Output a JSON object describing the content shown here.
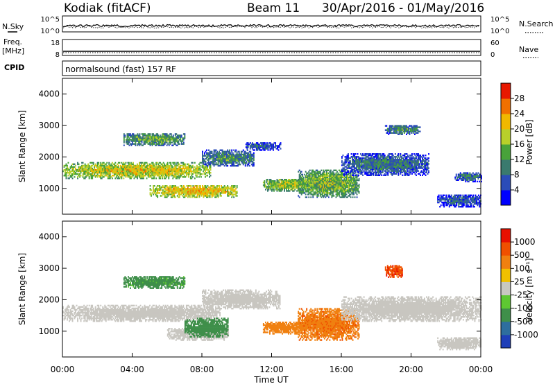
{
  "header": {
    "station": "Kodiak (fitACF)",
    "beam": "Beam 11",
    "date_range": "30/Apr/2016 - 01/May/2016"
  },
  "noise_panel": {
    "left_label": "N.Sky",
    "right_label": "N.Search",
    "left_ticks": [
      "10^5",
      "10^0"
    ],
    "right_ticks": [
      "10^5",
      "10^0"
    ]
  },
  "freq_panel": {
    "left_label_1": "Freq.",
    "left_label_2": "[MHz]",
    "right_label": "Nave",
    "left_ticks": [
      "18",
      "8"
    ],
    "right_ticks": [
      "60",
      "0"
    ]
  },
  "cpid_panel": {
    "label": "CPID",
    "text": "normalsound (fast) 157 RF"
  },
  "x_axis": {
    "label": "Time UT",
    "ticks": [
      "00:00",
      "04:00",
      "08:00",
      "12:00",
      "16:00",
      "20:00",
      "00:00"
    ]
  },
  "colors": {
    "power_scale": [
      "#0000ff",
      "#2b4cb8",
      "#3a7a6e",
      "#48a23a",
      "#b8d02a",
      "#f0b800",
      "#f07000",
      "#e81800"
    ],
    "velocity_scale": [
      "#1f3fb8",
      "#2e6e9e",
      "#3f8f4a",
      "#5ec832",
      "#c8c8c0",
      "#f0c000",
      "#f08010",
      "#f05000",
      "#e81000"
    ],
    "ground_scatter": "#c8c6c0"
  },
  "chart_data": [
    {
      "type": "heatmap",
      "title": "",
      "xlabel": "Time UT",
      "ylabel": "Slant Range [km]",
      "xlim": [
        0,
        24
      ],
      "ylim": [
        180,
        4500
      ],
      "y_ticks": [
        "1000",
        "2000",
        "3000",
        "4000"
      ],
      "colorbar": {
        "label": "Power [dB]",
        "ticks": [
          "4",
          "8",
          "12",
          "16",
          "20",
          "24",
          "28"
        ],
        "range": [
          0,
          30
        ]
      },
      "regions": [
        {
          "t": [
            0.0,
            8.5
          ],
          "r": [
            1300,
            1800
          ],
          "value": 20
        },
        {
          "t": [
            5.0,
            10.0
          ],
          "r": [
            700,
            1100
          ],
          "value": 22
        },
        {
          "t": [
            3.5,
            7.0
          ],
          "r": [
            2350,
            2750
          ],
          "value": 14
        },
        {
          "t": [
            8.0,
            11.0
          ],
          "r": [
            1700,
            2200
          ],
          "value": 12
        },
        {
          "t": [
            10.5,
            12.5
          ],
          "r": [
            2200,
            2450
          ],
          "value": 8
        },
        {
          "t": [
            11.5,
            14.5
          ],
          "r": [
            900,
            1300
          ],
          "value": 18
        },
        {
          "t": [
            13.5,
            17.0
          ],
          "r": [
            700,
            1600
          ],
          "value": 16
        },
        {
          "t": [
            16.0,
            21.0
          ],
          "r": [
            1400,
            2100
          ],
          "value": 10
        },
        {
          "t": [
            18.5,
            20.5
          ],
          "r": [
            2700,
            3000
          ],
          "value": 12
        },
        {
          "t": [
            21.5,
            24.0
          ],
          "r": [
            400,
            800
          ],
          "value": 8
        },
        {
          "t": [
            22.5,
            24.0
          ],
          "r": [
            1200,
            1500
          ],
          "value": 10
        }
      ]
    },
    {
      "type": "heatmap",
      "title": "",
      "xlabel": "Time UT",
      "ylabel": "Slant Range [km]",
      "xlim": [
        0,
        24
      ],
      "ylim": [
        180,
        4500
      ],
      "y_ticks": [
        "1000",
        "2000",
        "3000",
        "4000"
      ],
      "colorbar": {
        "label": "Velocity [m s⁻¹]",
        "ticks": [
          "1000",
          "500",
          "100",
          "25",
          "-25",
          "-100",
          "-500",
          "-1000"
        ]
      },
      "regions": [
        {
          "t": [
            0.0,
            9.0
          ],
          "r": [
            1300,
            1800
          ],
          "value": 0,
          "ground_scatter": true
        },
        {
          "t": [
            6.0,
            9.5
          ],
          "r": [
            700,
            1100
          ],
          "value": 0,
          "ground_scatter": true
        },
        {
          "t": [
            7.0,
            9.5
          ],
          "r": [
            800,
            1400
          ],
          "value": 200
        },
        {
          "t": [
            3.5,
            7.0
          ],
          "r": [
            2350,
            2750
          ],
          "value": 150
        },
        {
          "t": [
            8.0,
            12.5
          ],
          "r": [
            1700,
            2300
          ],
          "value": 0,
          "ground_scatter": true
        },
        {
          "t": [
            11.5,
            14.0
          ],
          "r": [
            900,
            1300
          ],
          "value": -300
        },
        {
          "t": [
            13.5,
            17.0
          ],
          "r": [
            700,
            1700
          ],
          "value": -400
        },
        {
          "t": [
            16.0,
            24.0
          ],
          "r": [
            1300,
            2100
          ],
          "value": 0,
          "ground_scatter": true
        },
        {
          "t": [
            18.5,
            19.5
          ],
          "r": [
            2700,
            3100
          ],
          "value": -800
        },
        {
          "t": [
            21.5,
            24.0
          ],
          "r": [
            400,
            800
          ],
          "value": 0,
          "ground_scatter": true
        }
      ]
    }
  ]
}
